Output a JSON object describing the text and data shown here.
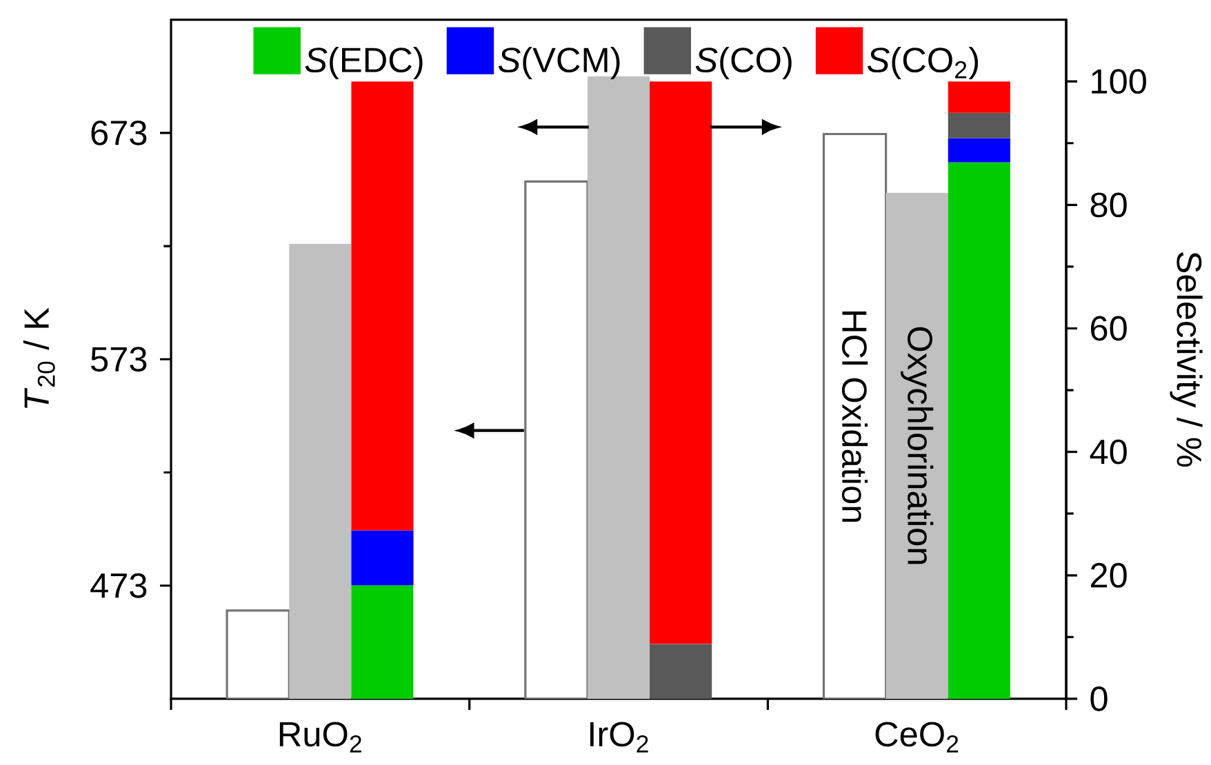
{
  "chart_data": {
    "type": "bar",
    "categories": [
      "RuO$_{2}$",
      "IrO$_{2}$",
      "CeO$_{2}$"
    ],
    "ylabel": "*T*$_{20}$ / K",
    "y2label": "Selectivity / %",
    "ylim": [
      423,
      723
    ],
    "yticks": [
      473,
      {
        "value": 523,
        "label": null
      },
      573,
      {
        "value": 623,
        "label": null
      },
      673
    ],
    "y2lim": [
      0,
      110
    ],
    "y2ticks": [
      0,
      {
        "value": 10,
        "label": null
      },
      20,
      {
        "value": 30,
        "label": null
      },
      40,
      {
        "value": 50,
        "label": null
      },
      60,
      {
        "value": 70,
        "label": null
      },
      80,
      {
        "value": 90,
        "label": null
      },
      100
    ],
    "legend": "top",
    "series": [
      {
        "name": "HCl Oxidation",
        "color": "#ffffff",
        "values": [
          462,
          651.5,
          672.5
        ]
      },
      {
        "name": "Oxychlorination",
        "color": "#c0c0c0",
        "values": [
          624,
          698,
          646.5
        ]
      },
      {
        "name": "*S*(EDC)",
        "color": "#00cc00",
        "axis": "y2",
        "base": [
          0,
          null,
          0
        ],
        "values": [
          18.4,
          null,
          86.9
        ]
      },
      {
        "name": "*S*(VCM)",
        "color": "#0000ff",
        "axis": "y2",
        "base": [
          18.4,
          null,
          86.9
        ],
        "values": [
          8.9,
          null,
          3.9
        ]
      },
      {
        "name": "*S*(CO)",
        "color": "#595959",
        "axis": "y2",
        "base": [
          null,
          0,
          90.8
        ],
        "values": [
          null,
          8.9,
          4.1
        ]
      },
      {
        "name": "*S*(CO$_{2}$)",
        "color": "#ff0000",
        "axis": "y2",
        "base": [
          27.3,
          8.9,
          94.9
        ],
        "values": [
          72.7,
          91.1,
          5.1
        ]
      }
    ]
  }
}
